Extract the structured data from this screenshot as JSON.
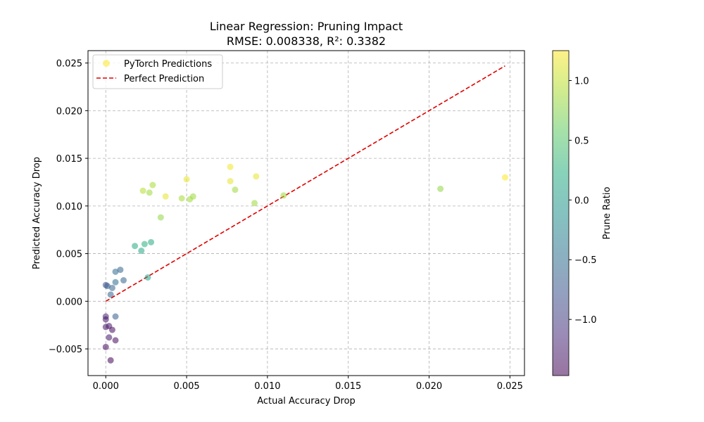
{
  "chart_data": {
    "type": "scatter",
    "title": "Linear Regression: Pruning Impact",
    "subtitle": "RMSE: 0.008338, R²: 0.3382",
    "xlabel": "Actual Accuracy Drop",
    "ylabel": "Predicted Accuracy Drop",
    "xlim": [
      -0.0011,
      0.0259
    ],
    "ylim": [
      -0.0078,
      0.0263
    ],
    "xticks": [
      0.0,
      0.005,
      0.01,
      0.015,
      0.02,
      0.025
    ],
    "xtick_labels": [
      "0.000",
      "0.005",
      "0.010",
      "0.015",
      "0.020",
      "0.025"
    ],
    "yticks": [
      -0.005,
      0.0,
      0.005,
      0.01,
      0.015,
      0.02,
      0.025
    ],
    "ytick_labels": [
      "−0.005",
      "0.000",
      "0.005",
      "0.010",
      "0.015",
      "0.020",
      "0.025"
    ],
    "grid": true,
    "legend_position": "top-left",
    "legend": {
      "scatter_label": "PyTorch Predictions",
      "line_label": "Perfect Prediction"
    },
    "line_color": "#e00000",
    "colorbar": {
      "label": "Prune Ratio",
      "min": -1.47,
      "max": 1.25,
      "ticks": [
        -1.0,
        -0.5,
        0.0,
        0.5,
        1.0
      ],
      "tick_labels": [
        "−1.0",
        "−0.5",
        "0.0",
        "0.5",
        "1.0"
      ],
      "colormap": "viridis"
    },
    "perfect_line": [
      [
        0.0,
        0.0
      ],
      [
        0.0247,
        0.0247
      ]
    ],
    "points": [
      {
        "x": 0.0247,
        "y": 0.013,
        "c": 1.25
      },
      {
        "x": 0.0207,
        "y": 0.0118,
        "c": 0.8
      },
      {
        "x": 0.011,
        "y": 0.0111,
        "c": 0.85
      },
      {
        "x": 0.0093,
        "y": 0.0131,
        "c": 1.15
      },
      {
        "x": 0.0092,
        "y": 0.0103,
        "c": 0.85
      },
      {
        "x": 0.008,
        "y": 0.0117,
        "c": 0.85
      },
      {
        "x": 0.0077,
        "y": 0.0141,
        "c": 1.2
      },
      {
        "x": 0.0077,
        "y": 0.0126,
        "c": 1.15
      },
      {
        "x": 0.0054,
        "y": 0.011,
        "c": 0.85
      },
      {
        "x": 0.0052,
        "y": 0.0107,
        "c": 0.85
      },
      {
        "x": 0.005,
        "y": 0.0128,
        "c": 1.15
      },
      {
        "x": 0.0047,
        "y": 0.0108,
        "c": 0.9
      },
      {
        "x": 0.0037,
        "y": 0.011,
        "c": 1.15
      },
      {
        "x": 0.0034,
        "y": 0.0088,
        "c": 0.8
      },
      {
        "x": 0.0029,
        "y": 0.0122,
        "c": 0.9
      },
      {
        "x": 0.0027,
        "y": 0.0114,
        "c": 0.85
      },
      {
        "x": 0.0023,
        "y": 0.0116,
        "c": 0.95
      },
      {
        "x": 0.0028,
        "y": 0.0062,
        "c": 0.2
      },
      {
        "x": 0.0024,
        "y": 0.006,
        "c": 0.25
      },
      {
        "x": 0.0022,
        "y": 0.0053,
        "c": 0.15
      },
      {
        "x": 0.0018,
        "y": 0.0058,
        "c": 0.2
      },
      {
        "x": 0.0026,
        "y": 0.0025,
        "c": 0.1
      },
      {
        "x": 0.0009,
        "y": 0.0033,
        "c": -0.6
      },
      {
        "x": 0.0006,
        "y": 0.0031,
        "c": -0.5
      },
      {
        "x": 0.0011,
        "y": 0.0022,
        "c": -0.6
      },
      {
        "x": 0.0006,
        "y": 0.002,
        "c": -0.5
      },
      {
        "x": 0.0004,
        "y": 0.0014,
        "c": -0.6
      },
      {
        "x": 0.0,
        "y": 0.0017,
        "c": -0.8
      },
      {
        "x": 0.0001,
        "y": 0.0016,
        "c": -0.7
      },
      {
        "x": 0.0003,
        "y": 0.0007,
        "c": -0.6
      },
      {
        "x": 0.0006,
        "y": -0.0016,
        "c": -0.7
      },
      {
        "x": 0.0,
        "y": -0.0016,
        "c": -1.2
      },
      {
        "x": 0.0,
        "y": -0.0019,
        "c": -1.3
      },
      {
        "x": 0.0,
        "y": -0.0027,
        "c": -1.3
      },
      {
        "x": 0.0002,
        "y": -0.0026,
        "c": -1.3
      },
      {
        "x": 0.0004,
        "y": -0.003,
        "c": -1.4
      },
      {
        "x": 0.0002,
        "y": -0.0038,
        "c": -1.3
      },
      {
        "x": 0.0006,
        "y": -0.0041,
        "c": -1.4
      },
      {
        "x": 0.0,
        "y": -0.0048,
        "c": -1.4
      },
      {
        "x": 0.0003,
        "y": -0.0062,
        "c": -1.45
      }
    ]
  }
}
